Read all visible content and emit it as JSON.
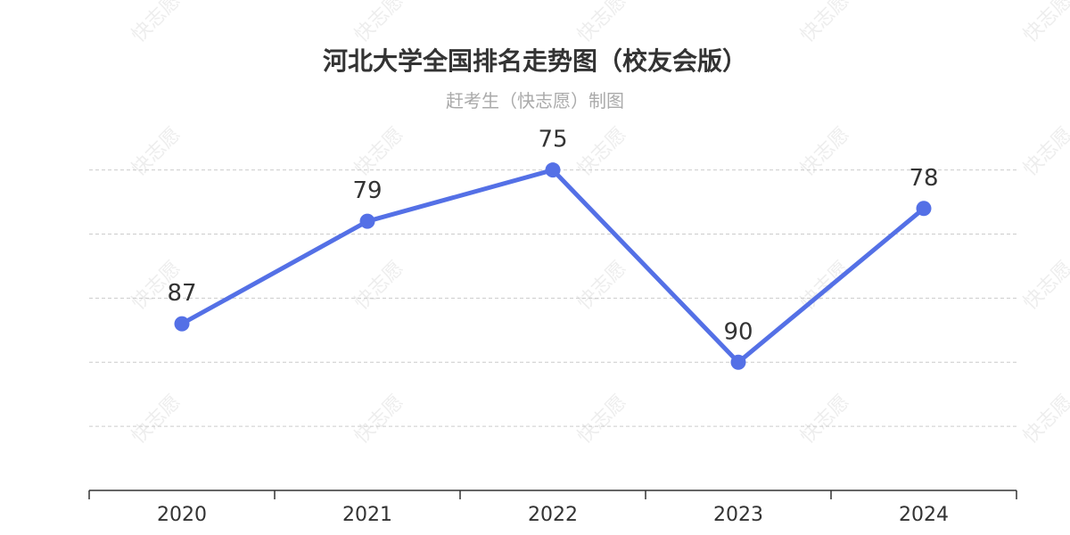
{
  "watermark": "快志愿",
  "chart_data": {
    "type": "line",
    "title": "河北大学全国排名走势图（校友会版）",
    "subtitle": "赶考生（快志愿）制图",
    "categories": [
      "2020",
      "2021",
      "2022",
      "2023",
      "2024"
    ],
    "series": [
      {
        "values": [
          87,
          79,
          75,
          90,
          78
        ],
        "color": "#5470e6"
      }
    ],
    "y_axis": {
      "inverse": true,
      "range": [
        70,
        100
      ],
      "grid_step": 5
    },
    "grid": true,
    "legend": false,
    "show_data_labels": true
  }
}
